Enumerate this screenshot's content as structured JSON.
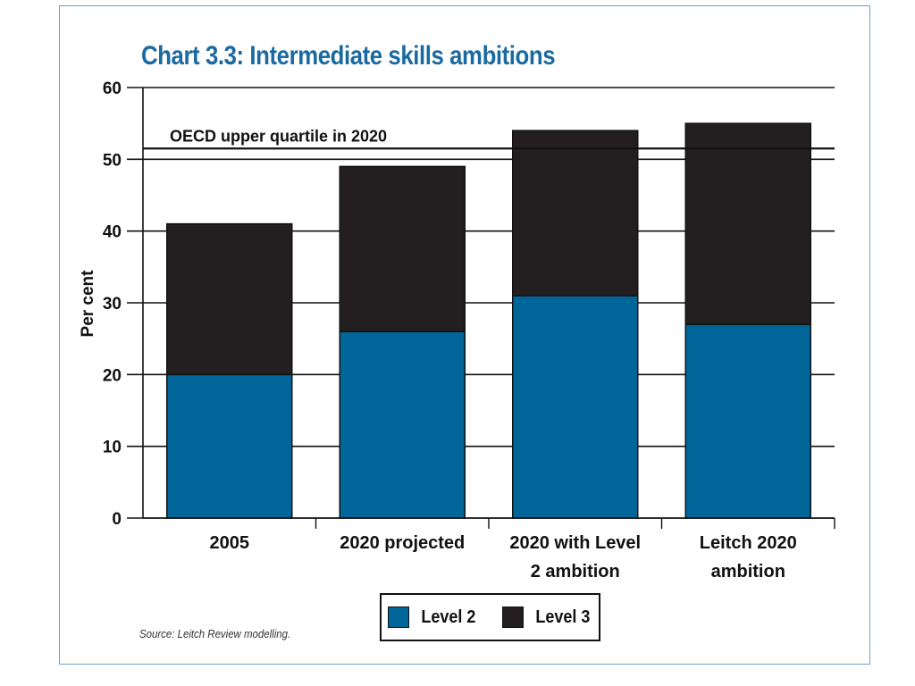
{
  "chart_data": {
    "type": "bar",
    "stacked": true,
    "title": "Chart 3.3: Intermediate skills ambitions",
    "ylabel": "Per cent",
    "xlabel": "",
    "ylim": [
      0,
      60
    ],
    "yticks": [
      0,
      10,
      20,
      30,
      40,
      50,
      60
    ],
    "grid": true,
    "legend_position": "bottom",
    "categories": [
      [
        "2005"
      ],
      [
        "2020 projected"
      ],
      [
        "2020 with Level",
        "2 ambition"
      ],
      [
        "Leitch 2020",
        "ambition"
      ]
    ],
    "series": [
      {
        "name": "Level 2",
        "color": "#006699",
        "values": [
          20,
          26,
          31,
          27
        ]
      },
      {
        "name": "Level 3",
        "color": "#231f20",
        "values": [
          21,
          23,
          23,
          28
        ]
      }
    ],
    "reference_lines": [
      {
        "label": "OECD upper quartile in 2020",
        "value": 51.5
      }
    ],
    "source": "Source: Leitch Review modelling."
  }
}
